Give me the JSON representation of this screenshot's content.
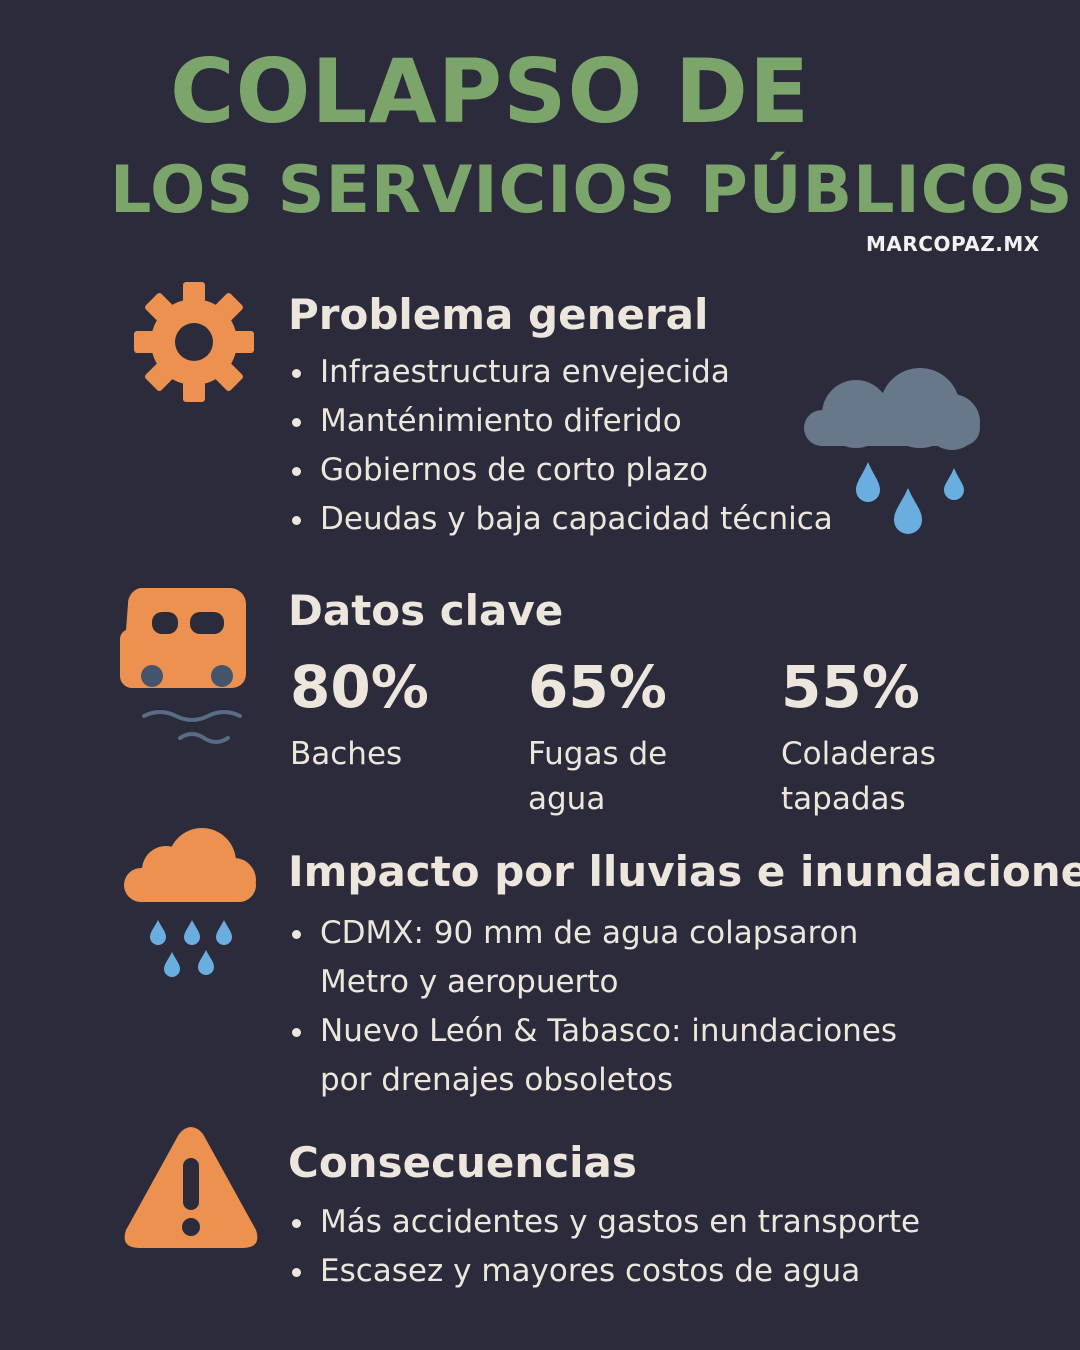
{
  "title": {
    "line1": "COLAPSO DE",
    "line2": "LOS SERVICIOS PÚBLICOS",
    "brand": "MARCOPAZ.MX"
  },
  "colors": {
    "background": "#2b2b3b",
    "title_green": "#7ba56a",
    "icon_orange": "#ec9150",
    "drop_blue": "#6aaee0",
    "cloud_gray": "#68778a"
  },
  "sections": {
    "problema": {
      "icon": "gear-icon",
      "heading": "Problema general",
      "items": [
        "Infraestructura envejecida",
        "Manténimiento diferido",
        "Gobiernos de corto plazo",
        "Deudas y baja capacidad técnica"
      ]
    },
    "datos": {
      "icon": "car-flood-icon",
      "heading": "Datos clave",
      "stats": [
        {
          "value": "80%",
          "label": "Baches"
        },
        {
          "value": "65%",
          "label": "Fugas de agua"
        },
        {
          "value": "55%",
          "label": "Coladeras tapadas"
        }
      ]
    },
    "impacto": {
      "icon": "rain-cloud-icon",
      "heading": "Impacto por lluvias e inundaciones",
      "items": [
        {
          "line1": "CDMX: 90 mm de agua colapsaron",
          "line2": "Metro y aeropuerto"
        },
        {
          "line1": "Nuevo León & Tabasco: inundaciones",
          "line2": "por drenajes obsoletos"
        }
      ]
    },
    "consecuencias": {
      "icon": "warning-icon",
      "heading": "Consecuencias",
      "items": [
        "Más accidentes y gastos en transporte",
        "Escasez y mayores costos de agua"
      ]
    }
  }
}
